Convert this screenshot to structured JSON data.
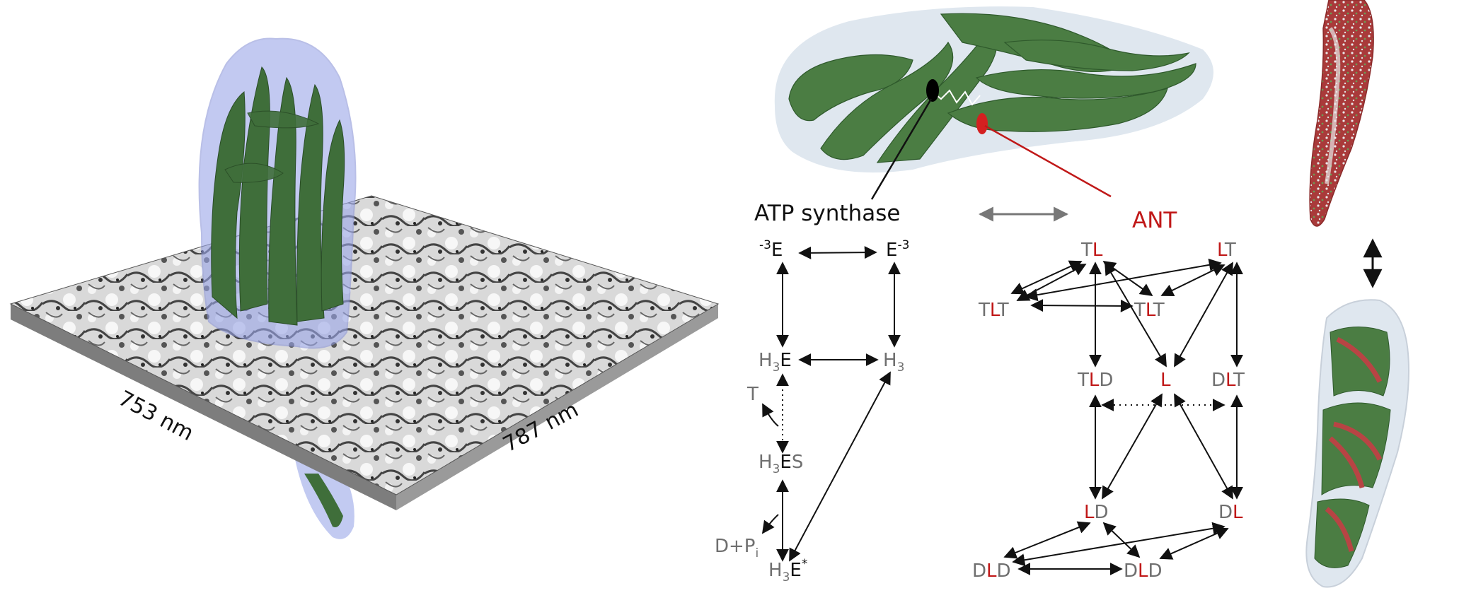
{
  "colors": {
    "text_black": "#111111",
    "text_gray": "#6f6f6f",
    "text_red": "#c01818",
    "mito_green": "#3f6e3a",
    "membrane_blue": "#9aa6e8",
    "outer_membrane_pale": "#dfe7ef"
  },
  "panel_a": {
    "dim1": "753 nm",
    "dim2": "787 nm"
  },
  "panel_b": {
    "atp_synthase": "ATP synthase",
    "ant": "ANT",
    "atp_states": {
      "e_minus": {
        "sup": "-3",
        "base": "E"
      },
      "e_plus": {
        "base": "E",
        "sup": "-3"
      },
      "h3e": {
        "h": "H",
        "sub": "3",
        "e": "E"
      },
      "h3": {
        "h": "H",
        "sub": "3"
      },
      "t": "T",
      "h3es": {
        "h": "H",
        "sub": "3",
        "e": "E",
        "s": "S"
      },
      "dpi": {
        "base": "D+P",
        "sub": "i"
      },
      "h3estar": {
        "h": "H",
        "sub": "3",
        "e": "E",
        "sup": "*"
      }
    },
    "ant_states": {
      "tl": {
        "a": "T",
        "b": "L"
      },
      "lt": {
        "a": "L",
        "b": "T"
      },
      "tlt1": {
        "a": "T",
        "b": "L",
        "c": "T"
      },
      "tlt2": {
        "a": "T",
        "b": "L",
        "c": "T"
      },
      "tld": {
        "a": "T",
        "b": "L",
        "c": "D"
      },
      "l": "L",
      "dlt": {
        "a": "D",
        "b": "L",
        "c": "T"
      },
      "ld": {
        "a": "L",
        "b": "D"
      },
      "dl": {
        "a": "D",
        "b": "L"
      },
      "dld1": {
        "a": "D",
        "b": "L",
        "c": "D"
      },
      "dld2": {
        "a": "D",
        "b": "L",
        "c": "D"
      }
    }
  }
}
